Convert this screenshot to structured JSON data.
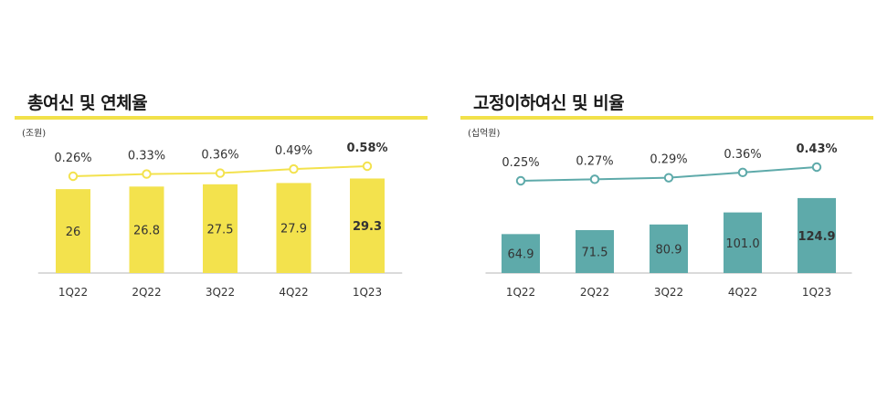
{
  "chart_data": [
    {
      "type": "bar",
      "title": "총여신 및 연체율",
      "unit": "(조원)",
      "categories": [
        "1Q22",
        "2Q22",
        "3Q22",
        "4Q22",
        "1Q23"
      ],
      "series": [
        {
          "type": "bar",
          "values": [
            26,
            26.8,
            27.5,
            27.9,
            29.3
          ],
          "labels": [
            "26",
            "26.8",
            "27.5",
            "27.9",
            "29.3"
          ]
        },
        {
          "type": "line",
          "values": [
            0.26,
            0.33,
            0.36,
            0.49,
            0.58
          ],
          "labels": [
            "0.26%",
            "0.33%",
            "0.36%",
            "0.49%",
            "0.58%"
          ]
        }
      ],
      "ylim_bar": [
        0,
        30
      ],
      "legend": "none",
      "grid": false,
      "highlight_last": true,
      "colors": {
        "bar": "#f3e24d",
        "line": "#f3e24d",
        "axis": "#b5b5b5",
        "marker_fill": "#ffffff"
      }
    },
    {
      "type": "bar",
      "title": "고정이하여신 및 비율",
      "unit": "(십억원)",
      "categories": [
        "1Q22",
        "2Q22",
        "3Q22",
        "4Q22",
        "1Q23"
      ],
      "series": [
        {
          "type": "bar",
          "values": [
            64.9,
            71.5,
            80.9,
            101.0,
            124.9
          ],
          "labels": [
            "64.9",
            "71.5",
            "80.9",
            "101.0",
            "124.9"
          ]
        },
        {
          "type": "line",
          "values": [
            0.25,
            0.27,
            0.29,
            0.36,
            0.43
          ],
          "labels": [
            "0.25%",
            "0.27%",
            "0.29%",
            "0.36%",
            "0.43%"
          ]
        }
      ],
      "ylim_bar": [
        0,
        140
      ],
      "legend": "none",
      "grid": false,
      "highlight_last": true,
      "colors": {
        "bar": "#5eaaaa",
        "line": "#5eaaaa",
        "axis": "#b5b5b5",
        "marker_fill": "#ffffff"
      }
    }
  ],
  "accent_rule_color": "#f2e14a"
}
